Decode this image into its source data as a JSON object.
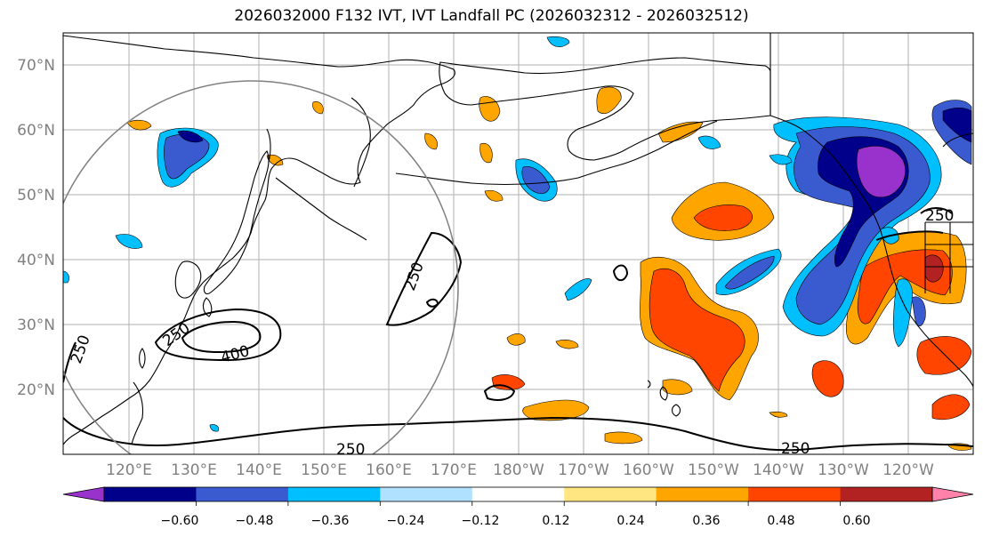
{
  "title": "2026032000 F132 IVT, IVT Landfall PC (2026032312 - 2026032512)",
  "map": {
    "lat_ticks": [
      "70°N",
      "60°N",
      "50°N",
      "40°N",
      "30°N",
      "20°N"
    ],
    "lon_ticks": [
      "120°E",
      "130°E",
      "140°E",
      "150°E",
      "160°E",
      "170°E",
      "180°W",
      "170°W",
      "160°W",
      "150°W",
      "140°W",
      "130°W",
      "120°W"
    ],
    "contour_labels": [
      "250",
      "250",
      "250",
      "400",
      "250",
      "250",
      "250"
    ],
    "colors": {
      "land_outline": "#000000",
      "grid": "#b0b0b0",
      "circle": "#808080"
    }
  },
  "colorbar": {
    "labels": [
      "−0.60",
      "−0.48",
      "−0.36",
      "−0.24",
      "−0.12",
      "0.12",
      "0.24",
      "0.36",
      "0.48",
      "0.60"
    ],
    "colors": [
      "#9932cc",
      "#00008b",
      "#3a5bd0",
      "#00bfff",
      "#b0e2ff",
      "#ffffff",
      "#ffe680",
      "#ffa500",
      "#ff4500",
      "#b22222",
      "#ff82ab"
    ]
  }
}
